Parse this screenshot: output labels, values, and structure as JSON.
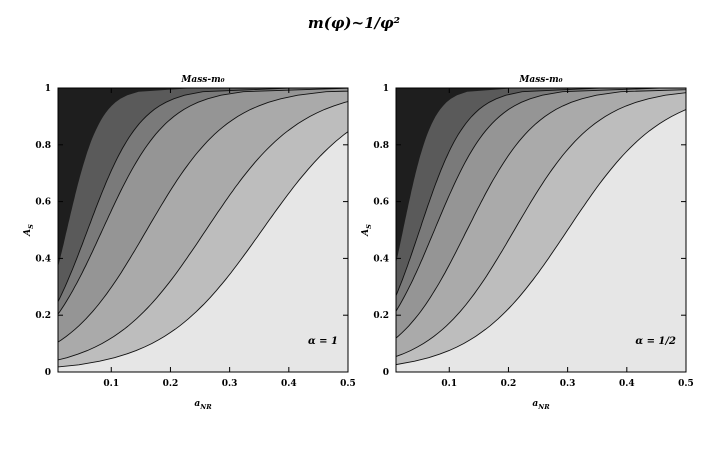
{
  "figure": {
    "title": "m(φ)~1/φ²"
  },
  "chart_data": [
    {
      "type": "heatmap",
      "title": "Mass-m₀",
      "xlabel": "aNR",
      "xlabel_main": "a",
      "xlabel_sub": "NR",
      "ylabel": "AS",
      "ylabel_main": "A",
      "ylabel_sub": "S",
      "xlim": [
        0.01,
        0.5
      ],
      "ylim": [
        0,
        1
      ],
      "xticks": [
        "0.1",
        "0.2",
        "0.3",
        "0.4",
        "0.5"
      ],
      "xtick_values": [
        0.1,
        0.2,
        0.3,
        0.4,
        0.5
      ],
      "yticks": [
        "0",
        "0.2",
        "0.4",
        "0.6",
        "0.8",
        "1"
      ],
      "ytick_values": [
        0,
        0.2,
        0.4,
        0.6,
        0.8,
        1
      ],
      "annotation": "α = 1",
      "annotation_position": "bottom-right",
      "grid": false,
      "contour_midpoints_x": [
        0.025,
        0.06,
        0.085,
        0.16,
        0.26,
        0.355,
        0.52
      ],
      "contour_widths": [
        0.028,
        0.045,
        0.055,
        0.07,
        0.08,
        0.085,
        0.095
      ],
      "contour_lines": [
        false,
        true,
        true,
        true,
        true,
        true,
        false
      ],
      "shade_levels": [
        "#1e1e1e",
        "#5a5a5a",
        "#7a7a7a",
        "#959595",
        "#aaaaaa",
        "#bdbdbd",
        "#e6e6e6"
      ]
    },
    {
      "type": "heatmap",
      "title": "Mass-m₀",
      "xlabel": "aNR",
      "xlabel_main": "a",
      "xlabel_sub": "NR",
      "ylabel": "AS",
      "ylabel_main": "A",
      "ylabel_sub": "S",
      "xlim": [
        0.01,
        0.5
      ],
      "ylim": [
        0,
        1
      ],
      "xticks": [
        "0.1",
        "0.2",
        "0.3",
        "0.4",
        "0.5"
      ],
      "xtick_values": [
        0.1,
        0.2,
        0.3,
        0.4,
        0.5
      ],
      "yticks": [
        "0",
        "0.2",
        "0.4",
        "0.6",
        "0.8",
        "1"
      ],
      "ytick_values": [
        0,
        0.2,
        0.4,
        0.6,
        0.8,
        1
      ],
      "annotation": "α = 1/2",
      "annotation_position": "bottom-right",
      "grid": false,
      "contour_midpoints_x": [
        0.022,
        0.05,
        0.075,
        0.13,
        0.21,
        0.3,
        0.46
      ],
      "contour_widths": [
        0.025,
        0.04,
        0.05,
        0.06,
        0.07,
        0.08,
        0.085
      ],
      "contour_lines": [
        false,
        true,
        true,
        true,
        true,
        true,
        false
      ],
      "shade_levels": [
        "#1e1e1e",
        "#5a5a5a",
        "#7a7a7a",
        "#959595",
        "#aaaaaa",
        "#bdbdbd",
        "#e6e6e6"
      ]
    }
  ]
}
